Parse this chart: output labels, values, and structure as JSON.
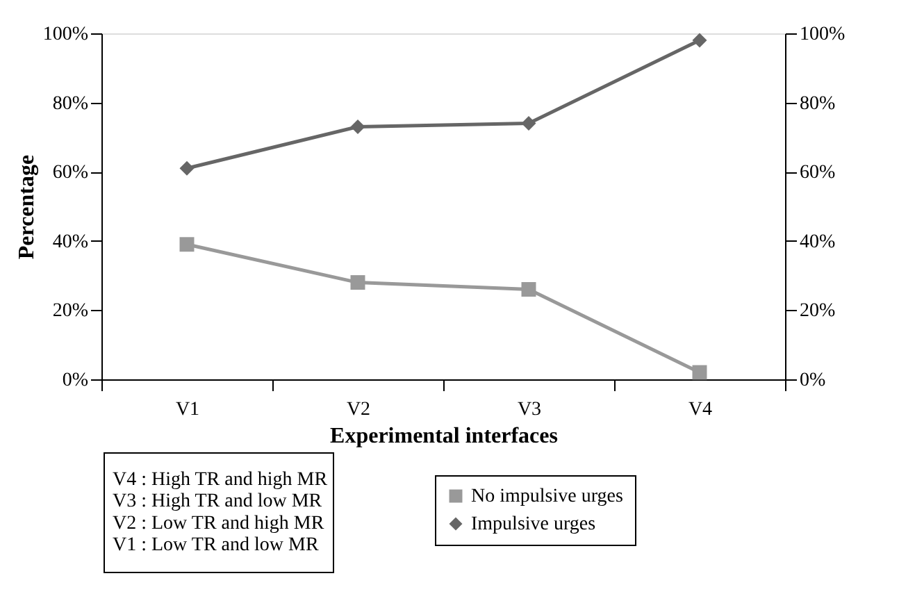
{
  "chart_data": {
    "type": "line",
    "xlabel": "Experimental interfaces",
    "ylabel": "Percentage",
    "categories": [
      "V1",
      "V2",
      "V3",
      "V4"
    ],
    "series": [
      {
        "name": "No impulsive urges",
        "color": "#999999",
        "marker": "square",
        "values": [
          39,
          28,
          26,
          2
        ]
      },
      {
        "name": "Impulsive urges",
        "color": "#666666",
        "marker": "diamond",
        "values": [
          61,
          73,
          74,
          98
        ]
      }
    ],
    "ylim": [
      0,
      100
    ],
    "yticks": [
      {
        "value": 0,
        "label": "0%"
      },
      {
        "value": 20,
        "label": "20%"
      },
      {
        "value": 40,
        "label": "40%"
      },
      {
        "value": 60,
        "label": "60%"
      },
      {
        "value": 80,
        "label": "80%"
      },
      {
        "value": 100,
        "label": "100%"
      }
    ],
    "y2lim": [
      0,
      100
    ],
    "y2ticks": [
      {
        "value": 0,
        "label": "0%"
      },
      {
        "value": 20,
        "label": "20%"
      },
      {
        "value": 40,
        "label": "40%"
      },
      {
        "value": 60,
        "label": "60%"
      },
      {
        "value": 80,
        "label": "80%"
      },
      {
        "value": 100,
        "label": "100%"
      }
    ],
    "grid": false,
    "legend": "bottom",
    "line_style": "solid",
    "annotations": [
      "V4 : High TR and high MR",
      "V3 : High TR and low MR",
      "V2 : Low TR and high MR",
      "V1 : Low TR and low MR"
    ]
  }
}
